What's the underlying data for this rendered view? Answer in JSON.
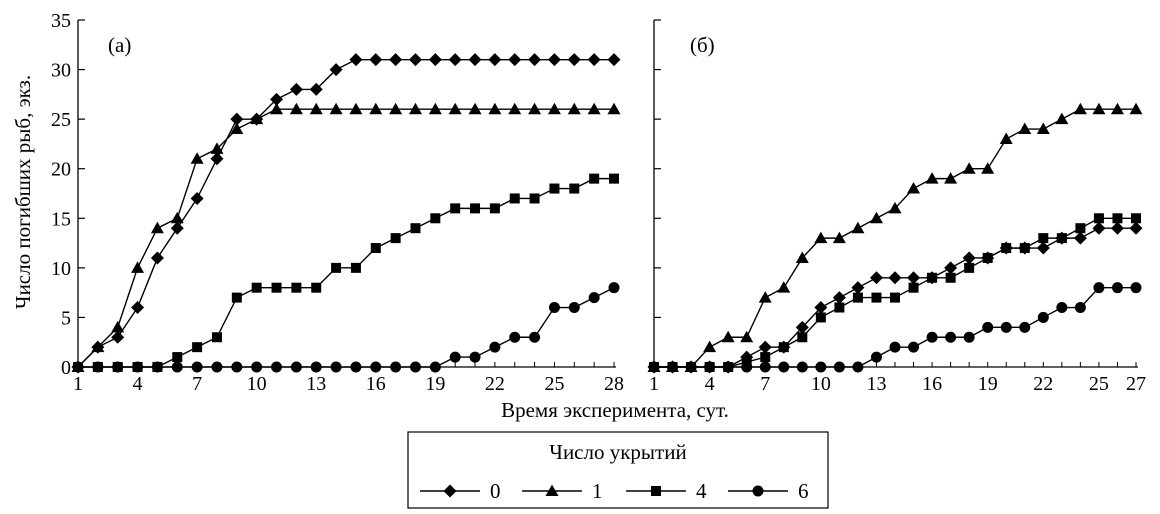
{
  "chart_data": [
    {
      "type": "line",
      "panel_label": "(а)",
      "ylabel": "Число погибших рыб, экз.",
      "xlabel": "Время эксперимента, сут.",
      "xlim": [
        1,
        28
      ],
      "ylim": [
        0,
        35
      ],
      "x_ticks": [
        1,
        4,
        7,
        10,
        13,
        16,
        19,
        22,
        25,
        28
      ],
      "y_ticks": [
        0,
        5,
        10,
        15,
        20,
        25,
        30,
        35
      ],
      "x": [
        1,
        2,
        3,
        4,
        5,
        6,
        7,
        8,
        9,
        10,
        11,
        12,
        13,
        14,
        15,
        16,
        17,
        18,
        19,
        20,
        21,
        22,
        23,
        24,
        25,
        26,
        27,
        28
      ],
      "series": [
        {
          "name": "0",
          "marker": "diamond",
          "values": [
            0,
            2,
            3,
            6,
            11,
            14,
            17,
            21,
            25,
            25,
            27,
            28,
            28,
            30,
            31,
            31,
            31,
            31,
            31,
            31,
            31,
            31,
            31,
            31,
            31,
            31,
            31,
            31
          ]
        },
        {
          "name": "1",
          "marker": "triangle",
          "values": [
            0,
            2,
            4,
            10,
            14,
            15,
            21,
            22,
            24,
            25,
            26,
            26,
            26,
            26,
            26,
            26,
            26,
            26,
            26,
            26,
            26,
            26,
            26,
            26,
            26,
            26,
            26,
            26
          ]
        },
        {
          "name": "4",
          "marker": "square",
          "values": [
            0,
            0,
            0,
            0,
            0,
            1,
            2,
            3,
            7,
            8,
            8,
            8,
            8,
            10,
            10,
            12,
            13,
            14,
            15,
            16,
            16,
            16,
            17,
            17,
            18,
            18,
            19,
            19
          ]
        },
        {
          "name": "6",
          "marker": "circle",
          "values": [
            0,
            0,
            0,
            0,
            0,
            0,
            0,
            0,
            0,
            0,
            0,
            0,
            0,
            0,
            0,
            0,
            0,
            0,
            0,
            1,
            1,
            2,
            3,
            3,
            6,
            6,
            7,
            8
          ]
        }
      ]
    },
    {
      "type": "line",
      "panel_label": "(б)",
      "xlabel": "Время эксперимента, сут.",
      "xlim": [
        1,
        27
      ],
      "ylim": [
        0,
        35
      ],
      "x_ticks": [
        1,
        4,
        7,
        10,
        13,
        16,
        19,
        22,
        25,
        27
      ],
      "y_ticks": [
        0,
        5,
        10,
        15,
        20,
        25,
        30,
        35
      ],
      "x": [
        1,
        2,
        3,
        4,
        5,
        6,
        7,
        8,
        9,
        10,
        11,
        12,
        13,
        14,
        15,
        16,
        17,
        18,
        19,
        20,
        21,
        22,
        23,
        24,
        25,
        26,
        27
      ],
      "series": [
        {
          "name": "0",
          "marker": "diamond",
          "values": [
            0,
            0,
            0,
            0,
            0,
            1,
            2,
            2,
            4,
            6,
            7,
            8,
            9,
            9,
            9,
            9,
            10,
            11,
            11,
            12,
            12,
            12,
            13,
            13,
            14,
            14,
            14
          ]
        },
        {
          "name": "1",
          "marker": "triangle",
          "values": [
            0,
            0,
            0,
            2,
            3,
            3,
            7,
            8,
            11,
            13,
            13,
            14,
            15,
            16,
            18,
            19,
            19,
            20,
            20,
            23,
            24,
            24,
            25,
            26,
            26,
            26,
            26
          ]
        },
        {
          "name": "4",
          "marker": "square",
          "values": [
            0,
            0,
            0,
            0,
            0,
            0.5,
            1,
            2,
            3,
            5,
            6,
            7,
            7,
            7,
            8,
            9,
            9,
            10,
            11,
            12,
            12,
            13,
            13,
            14,
            15,
            15,
            15
          ]
        },
        {
          "name": "6",
          "marker": "circle",
          "values": [
            0,
            0,
            0,
            0,
            0,
            0,
            0,
            0,
            0,
            0,
            0,
            0,
            1,
            2,
            2,
            3,
            3,
            3,
            4,
            4,
            4,
            5,
            6,
            6,
            8,
            8,
            8
          ]
        }
      ]
    }
  ],
  "legend": {
    "title": "Число укрытий",
    "items": [
      {
        "label": "0",
        "marker": "diamond"
      },
      {
        "label": "1",
        "marker": "triangle"
      },
      {
        "label": "4",
        "marker": "square"
      },
      {
        "label": "6",
        "marker": "circle"
      }
    ]
  }
}
